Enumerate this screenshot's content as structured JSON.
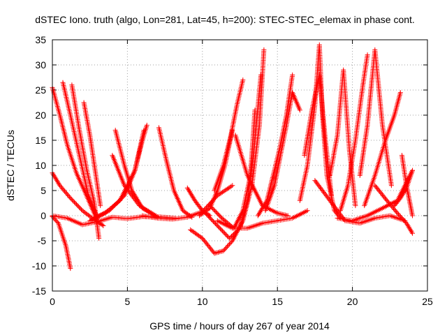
{
  "chart_data": {
    "type": "scatter",
    "title": "dSTEC Iono. truth (algo, Lon=281, Lat=45, h=200): STEC-STEC_elemax in phase cont.",
    "xlabel": "GPS time / hours of day 267 of year 2014",
    "ylabel": "dSTEC  / TECUs",
    "xlim": [
      0,
      25
    ],
    "ylim": [
      -15,
      35
    ],
    "x_ticks": [
      0,
      5,
      10,
      15,
      20,
      25
    ],
    "y_ticks": [
      -15,
      -10,
      -5,
      0,
      5,
      10,
      15,
      20,
      25,
      30,
      35
    ],
    "grid": true,
    "marker": "+",
    "color": "#ff0000",
    "series": [
      {
        "x": [
          0.0,
          0.4,
          0.9,
          1.2
        ],
        "y": [
          -0.2,
          -1.5,
          -6.0,
          -10.5
        ]
      },
      {
        "x": [
          0.0,
          0.5,
          1.0,
          1.6,
          2.2,
          3.0
        ],
        "y": [
          25.5,
          20.0,
          14.0,
          8.5,
          4.5,
          -1.0
        ]
      },
      {
        "x": [
          0.0,
          0.5,
          1.2,
          2.0,
          2.8,
          3.4
        ],
        "y": [
          8.5,
          6.0,
          3.5,
          1.0,
          -0.8,
          -2.0
        ]
      },
      {
        "x": [
          0.7,
          1.2,
          1.8,
          2.4,
          3.0
        ],
        "y": [
          26.5,
          20.0,
          12.0,
          4.0,
          -0.5
        ]
      },
      {
        "x": [
          1.3,
          1.8,
          2.3,
          2.8,
          3.1
        ],
        "y": [
          26.0,
          17.0,
          9.0,
          2.5,
          -4.5
        ]
      },
      {
        "x": [
          2.1,
          2.5,
          2.9,
          3.2
        ],
        "y": [
          22.5,
          16.0,
          8.0,
          2.0
        ]
      },
      {
        "x": [
          0.0,
          1.0,
          2.0,
          3.0,
          4.0,
          5.0,
          6.0,
          7.0
        ],
        "y": [
          0.0,
          -0.5,
          -1.8,
          -1.2,
          -0.3,
          -0.6,
          -0.2,
          -0.3
        ]
      },
      {
        "x": [
          2.5,
          3.5,
          4.5,
          5.5,
          6.0,
          6.3
        ],
        "y": [
          -1.0,
          0.5,
          3.0,
          9.0,
          15.0,
          18.0
        ]
      },
      {
        "x": [
          2.8,
          3.8,
          4.8,
          5.5,
          6.1
        ],
        "y": [
          -0.5,
          1.0,
          4.0,
          9.0,
          17.0
        ]
      },
      {
        "x": [
          4.2,
          4.8,
          5.3,
          6.0,
          7.0
        ],
        "y": [
          17.0,
          10.0,
          5.0,
          1.5,
          -0.3
        ]
      },
      {
        "x": [
          4.0,
          4.8,
          5.8,
          7.0,
          8.2
        ],
        "y": [
          12.0,
          6.0,
          2.0,
          -0.2,
          -0.5
        ]
      },
      {
        "x": [
          7.1,
          7.6,
          8.1,
          8.7,
          9.3
        ],
        "y": [
          17.5,
          11.0,
          5.0,
          1.0,
          -0.3
        ]
      },
      {
        "x": [
          6.0,
          7.0,
          8.0,
          9.0,
          10.0,
          11.0,
          12.0
        ],
        "y": [
          0.0,
          -0.5,
          -0.7,
          -0.3,
          0.8,
          4.0,
          6.0
        ]
      },
      {
        "x": [
          9.0,
          9.5,
          10.0,
          10.5
        ],
        "y": [
          5.5,
          3.0,
          1.0,
          0.0
        ]
      },
      {
        "x": [
          9.2,
          10.0,
          10.8,
          11.4,
          12.0,
          12.7,
          13.3,
          13.8,
          14.1
        ],
        "y": [
          -2.8,
          -4.5,
          -7.5,
          -7.0,
          -5.0,
          -1.0,
          6.0,
          18.0,
          33.0
        ]
      },
      {
        "x": [
          10.2,
          11.0,
          11.8,
          12.5,
          13.0,
          13.4,
          13.9
        ],
        "y": [
          0.5,
          -2.0,
          -4.5,
          -2.5,
          3.0,
          12.0,
          28.0
        ]
      },
      {
        "x": [
          10.5,
          11.3,
          12.1,
          12.7,
          13.2,
          13.5
        ],
        "y": [
          2.0,
          -0.5,
          -2.5,
          1.0,
          8.0,
          21.0
        ]
      },
      {
        "x": [
          10.8,
          11.4,
          11.9,
          12.3,
          12.7
        ],
        "y": [
          5.0,
          10.0,
          16.0,
          22.0,
          27.0
        ]
      },
      {
        "x": [
          9.8,
          10.5,
          11.0,
          11.5,
          12.0
        ],
        "y": [
          0.0,
          1.5,
          5.0,
          10.0,
          17.0
        ]
      },
      {
        "x": [
          12.2,
          13.0,
          14.0,
          15.0,
          15.7
        ],
        "y": [
          16.0,
          8.0,
          2.0,
          0.5,
          0.0
        ]
      },
      {
        "x": [
          11.0,
          12.0,
          13.0,
          14.0,
          15.0,
          16.0,
          17.0
        ],
        "y": [
          -1.0,
          -2.5,
          -2.5,
          -1.5,
          -1.0,
          -0.5,
          1.0
        ]
      },
      {
        "x": [
          13.7,
          14.3,
          14.8,
          15.2,
          15.6,
          16.0
        ],
        "y": [
          0.0,
          3.0,
          9.0,
          14.0,
          20.0,
          28.0
        ]
      },
      {
        "x": [
          14.2,
          14.8,
          15.2,
          15.6,
          16.0,
          16.5
        ],
        "y": [
          1.0,
          6.0,
          12.0,
          18.0,
          24.5,
          21.0
        ]
      },
      {
        "x": [
          16.5,
          17.0,
          17.5,
          17.8,
          18.0,
          18.3,
          18.8,
          19.2
        ],
        "y": [
          3.0,
          10.0,
          22.0,
          34.0,
          20.0,
          8.0,
          1.0,
          -0.5
        ]
      },
      {
        "x": [
          16.8,
          17.3,
          17.8,
          18.2,
          18.6
        ],
        "y": [
          12.0,
          21.0,
          28.0,
          15.0,
          4.0
        ]
      },
      {
        "x": [
          18.5,
          19.0,
          19.4,
          19.8,
          20.2
        ],
        "y": [
          8.0,
          16.0,
          29.0,
          13.0,
          2.0
        ]
      },
      {
        "x": [
          19.2,
          19.7,
          20.2,
          20.7,
          21.0
        ],
        "y": [
          1.0,
          6.0,
          15.0,
          26.0,
          32.0
        ]
      },
      {
        "x": [
          20.5,
          21.0,
          21.5,
          22.0,
          22.6
        ],
        "y": [
          8.0,
          18.0,
          33.0,
          18.0,
          6.0
        ]
      },
      {
        "x": [
          20.8,
          21.5,
          22.2,
          22.8,
          23.2
        ],
        "y": [
          2.0,
          8.0,
          15.0,
          20.0,
          24.5
        ]
      },
      {
        "x": [
          17.5,
          18.5,
          19.5,
          20.5,
          21.5,
          22.5,
          23.5
        ],
        "y": [
          7.0,
          3.0,
          -1.0,
          -1.5,
          -0.5,
          0.0,
          -1.0
        ]
      },
      {
        "x": [
          19.0,
          20.0,
          21.0,
          22.0,
          23.0,
          24.0
        ],
        "y": [
          -0.5,
          -1.0,
          0.0,
          1.5,
          3.0,
          9.0
        ]
      },
      {
        "x": [
          21.5,
          22.3,
          23.0,
          23.6,
          24.0
        ],
        "y": [
          6.0,
          3.0,
          0.5,
          -1.5,
          -3.5
        ]
      },
      {
        "x": [
          23.3,
          23.6,
          23.8,
          24.0
        ],
        "y": [
          12.0,
          6.0,
          3.0,
          0.0
        ]
      },
      {
        "x": [
          22.8,
          23.2,
          23.6,
          24.0
        ],
        "y": [
          2.0,
          3.5,
          5.5,
          9.0
        ]
      }
    ]
  }
}
